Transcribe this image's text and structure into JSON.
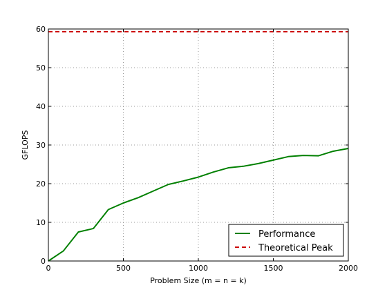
{
  "chart_data": {
    "type": "line",
    "title": "",
    "xlabel": "Problem Size (m = n = k)",
    "ylabel": "GFLOPS",
    "xlim": [
      0,
      2000
    ],
    "ylim": [
      0,
      60
    ],
    "xticks": [
      0,
      500,
      1000,
      1500,
      2000
    ],
    "yticks": [
      0,
      10,
      20,
      30,
      40,
      50,
      60
    ],
    "xtick_labels": [
      "0",
      "500",
      "1000",
      "1500",
      "2000"
    ],
    "ytick_labels": [
      "0",
      "10",
      "20",
      "30",
      "40",
      "50",
      "60"
    ],
    "grid": true,
    "legend_position": "bottom-right",
    "series": [
      {
        "name": "Performance",
        "color": "#008000",
        "style": "solid",
        "x": [
          0,
          100,
          200,
          300,
          400,
          500,
          600,
          700,
          800,
          900,
          1000,
          1100,
          1200,
          1300,
          1400,
          1500,
          1600,
          1700,
          1800,
          1900,
          2000
        ],
        "y": [
          0,
          2.6,
          7.5,
          8.4,
          13.3,
          15.0,
          16.4,
          18.1,
          19.8,
          20.7,
          21.7,
          23.0,
          24.1,
          24.5,
          25.2,
          26.1,
          27.0,
          27.3,
          27.2,
          28.4,
          29.1
        ]
      },
      {
        "name": "Theoretical Peak",
        "color": "#cc0000",
        "style": "dashed",
        "x": [
          0,
          2000
        ],
        "y": [
          59.3,
          59.3
        ]
      }
    ]
  }
}
